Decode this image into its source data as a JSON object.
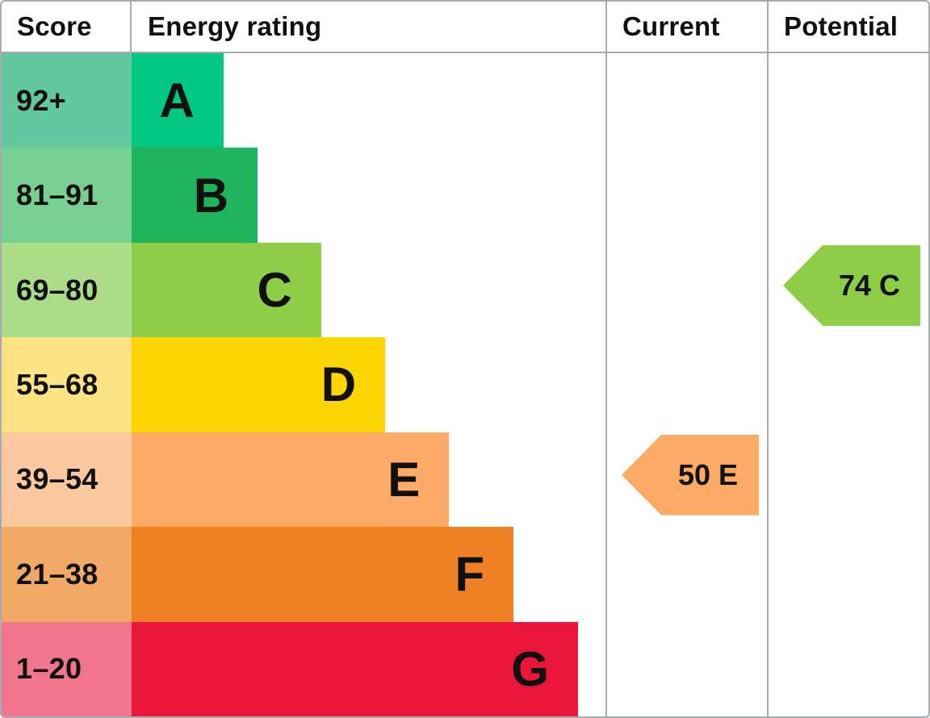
{
  "table": {
    "headers": {
      "score": "Score",
      "energy_rating": "Energy rating",
      "current": "Current",
      "potential": "Potential"
    },
    "rows": [
      {
        "score": "92+",
        "letter": "A",
        "cell_color": "#63c7a0",
        "bar_color": "#00c781",
        "bar_percent": 19.4
      },
      {
        "score": "81–91",
        "letter": "B",
        "cell_color": "#77cf92",
        "bar_color": "#1db45b",
        "bar_percent": 26.6
      },
      {
        "score": "69–80",
        "letter": "C",
        "cell_color": "#acdb8a",
        "bar_color": "#8dce46",
        "bar_percent": 40.0
      },
      {
        "score": "55–68",
        "letter": "D",
        "cell_color": "#fbe383",
        "bar_color": "#fdd500",
        "bar_percent": 53.5
      },
      {
        "score": "39–54",
        "letter": "E",
        "cell_color": "#fcc99e",
        "bar_color": "#fcaa65",
        "bar_percent": 67.0
      },
      {
        "score": "21–38",
        "letter": "F",
        "cell_color": "#f3a966",
        "bar_color": "#ee8122",
        "bar_percent": 80.6
      },
      {
        "score": "1–20",
        "letter": "G",
        "cell_color": "#f1758d",
        "bar_color": "#e9153b",
        "bar_percent": 94.2
      }
    ],
    "markers": {
      "current": {
        "label": "50 E",
        "score": 50,
        "rating": "E",
        "row_index": 4,
        "color": "#fcaa65"
      },
      "potential": {
        "label": "74 C",
        "score": 74,
        "rating": "C",
        "row_index": 2,
        "color": "#8dce46"
      }
    },
    "border_color": "#a6aab1"
  },
  "chart_data": {
    "type": "bar",
    "title": "Energy rating",
    "column_headers": [
      "Score",
      "Energy rating",
      "Current",
      "Potential"
    ],
    "categories": [
      "A",
      "B",
      "C",
      "D",
      "E",
      "F",
      "G"
    ],
    "score_ranges": [
      "92+",
      "81–91",
      "69–80",
      "55–68",
      "39–54",
      "21–38",
      "1–20"
    ],
    "bar_widths_percent": [
      19.4,
      26.6,
      40.0,
      53.5,
      67.0,
      80.6,
      94.2
    ],
    "band_colors": [
      "#00c781",
      "#1db45b",
      "#8dce46",
      "#fdd500",
      "#fcaa65",
      "#ee8122",
      "#e9153b"
    ],
    "markers": [
      {
        "column": "Current",
        "score": 50,
        "rating": "E",
        "band_index": 4,
        "color": "#fcaa65"
      },
      {
        "column": "Potential",
        "score": 74,
        "rating": "C",
        "band_index": 2,
        "color": "#8dce46"
      }
    ],
    "legend_position": "none",
    "grid": false
  }
}
